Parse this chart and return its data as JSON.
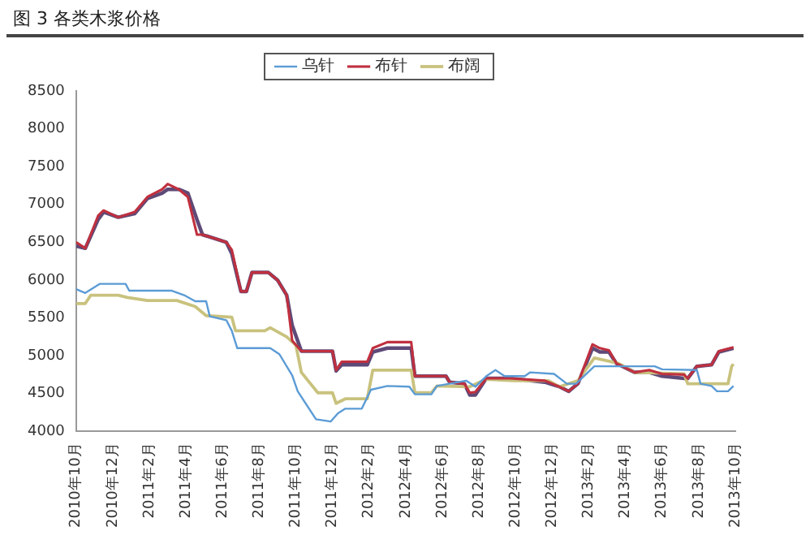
{
  "chart_data": {
    "type": "line",
    "title": "图 3 各类木浆价格",
    "xlim": [
      "2010-10",
      "2013-10"
    ],
    "xticks": [
      {
        "value": "2010-10",
        "label": "2010年10月"
      },
      {
        "value": "2010-12",
        "label": "2010年12月"
      },
      {
        "value": "2011-02",
        "label": "2011年2月"
      },
      {
        "value": "2011-04",
        "label": "2011年4月"
      },
      {
        "value": "2011-06",
        "label": "2011年6月"
      },
      {
        "value": "2011-08",
        "label": "2011年8月"
      },
      {
        "value": "2011-10",
        "label": "2011年10月"
      },
      {
        "value": "2011-12",
        "label": "2011年12月"
      },
      {
        "value": "2012-02",
        "label": "2012年2月"
      },
      {
        "value": "2012-04",
        "label": "2012年4月"
      },
      {
        "value": "2012-06",
        "label": "2012年6月"
      },
      {
        "value": "2012-08",
        "label": "2012年8月"
      },
      {
        "value": "2012-10",
        "label": "2012年10月"
      },
      {
        "value": "2012-12",
        "label": "2012年12月"
      },
      {
        "value": "2013-02",
        "label": "2013年2月"
      },
      {
        "value": "2013-04",
        "label": "2013年4月"
      },
      {
        "value": "2013-06",
        "label": "2013年6月"
      },
      {
        "value": "2013-08",
        "label": "2013年8月"
      },
      {
        "value": "2013-10",
        "label": "2013年10月"
      }
    ],
    "ylim": [
      4000,
      8500
    ],
    "yticks": [
      4000,
      4500,
      5000,
      5500,
      6000,
      6500,
      7000,
      7500,
      8000,
      8500
    ],
    "grid": false,
    "legend": "top",
    "marker": "none",
    "line_style": "solid",
    "series": [
      {
        "name": "乌针",
        "color": "#5b9bd5",
        "x": [
          "2010-10-01",
          "2010-10-16",
          "2010-11-10",
          "2010-12-22",
          "2010-12-28",
          "2011-03-07",
          "2011-03-28",
          "2011-04-16",
          "2011-05-04",
          "2011-05-10",
          "2011-06-07",
          "2011-06-16",
          "2011-06-25",
          "2011-08-19",
          "2011-09-04",
          "2011-09-25",
          "2011-10-04",
          "2011-11-04",
          "2011-11-28",
          "2011-12-10",
          "2011-12-22",
          "2012-01-19",
          "2012-02-04",
          "2012-03-01",
          "2012-04-07",
          "2012-04-16",
          "2012-05-13",
          "2012-05-22",
          "2012-07-10",
          "2012-07-25",
          "2012-08-13",
          "2012-08-28",
          "2012-09-13",
          "2012-10-16",
          "2012-10-25",
          "2012-12-04",
          "2012-12-25",
          "2013-01-10",
          "2013-01-19",
          "2013-02-10",
          "2013-05-19",
          "2013-06-01",
          "2013-07-28",
          "2013-08-04",
          "2013-08-22",
          "2013-09-01",
          "2013-09-19",
          "2013-09-28"
        ],
        "values": [
          5880,
          5830,
          5950,
          5950,
          5860,
          5860,
          5800,
          5720,
          5720,
          5520,
          5470,
          5330,
          5100,
          5100,
          5020,
          4740,
          4530,
          4160,
          4130,
          4240,
          4300,
          4300,
          4550,
          4600,
          4590,
          4490,
          4490,
          4600,
          4670,
          4590,
          4730,
          4810,
          4730,
          4730,
          4780,
          4760,
          4630,
          4630,
          4700,
          4860,
          4860,
          4820,
          4810,
          4630,
          4600,
          4530,
          4530,
          4600
        ]
      },
      {
        "name": "布针",
        "color": "#c0303f",
        "x": [
          "2010-10-01",
          "2010-10-16",
          "2010-11-07",
          "2010-11-16",
          "2010-12-10",
          "2011-01-07",
          "2011-01-28",
          "2011-02-22",
          "2011-03-01",
          "2011-03-19",
          "2011-04-04",
          "2011-04-19",
          "2011-04-28",
          "2011-06-07",
          "2011-06-16",
          "2011-07-01",
          "2011-07-10",
          "2011-07-19",
          "2011-08-16",
          "2011-09-01",
          "2011-09-16",
          "2011-09-25",
          "2011-10-10",
          "2011-12-01",
          "2011-12-07",
          "2011-12-16",
          "2012-01-28",
          "2012-02-07",
          "2012-03-01",
          "2012-04-10",
          "2012-04-16",
          "2012-06-07",
          "2012-06-13",
          "2012-07-07",
          "2012-07-16",
          "2012-07-25",
          "2012-08-13",
          "2012-09-22",
          "2012-11-19",
          "2012-12-13",
          "2012-12-28",
          "2013-01-13",
          "2013-02-07",
          "2013-02-19",
          "2013-03-04",
          "2013-03-16",
          "2013-04-16",
          "2013-05-10",
          "2013-06-01",
          "2013-07-07",
          "2013-07-13",
          "2013-07-28",
          "2013-08-22",
          "2013-09-04",
          "2013-09-28"
        ],
        "values": [
          6500,
          6420,
          6850,
          6920,
          6830,
          6900,
          7100,
          7200,
          7270,
          7200,
          7100,
          6600,
          6600,
          6500,
          6400,
          5850,
          5850,
          6100,
          6100,
          6000,
          5800,
          5200,
          5060,
          5060,
          4810,
          4920,
          4920,
          5100,
          5180,
          5180,
          4730,
          4730,
          4650,
          4630,
          4510,
          4520,
          4700,
          4700,
          4670,
          4590,
          4530,
          4630,
          5150,
          5100,
          5070,
          4900,
          4780,
          4810,
          4760,
          4750,
          4700,
          4860,
          4880,
          5060,
          5110
        ]
      },
      {
        "name": "布阔",
        "color": "#c9c27e",
        "x": [
          "2010-10-01",
          "2010-10-16",
          "2010-10-25",
          "2010-12-10",
          "2010-12-25",
          "2011-01-28",
          "2011-03-16",
          "2011-04-16",
          "2011-05-04",
          "2011-06-16",
          "2011-06-22",
          "2011-08-10",
          "2011-08-19",
          "2011-09-16",
          "2011-10-01",
          "2011-10-10",
          "2011-11-07",
          "2011-12-01",
          "2011-12-07",
          "2011-12-22",
          "2012-01-28",
          "2012-02-07",
          "2012-04-10",
          "2012-04-16",
          "2012-05-13",
          "2012-05-22",
          "2012-07-16",
          "2012-08-13",
          "2012-09-28",
          "2012-11-25",
          "2012-12-13",
          "2013-01-13",
          "2013-02-10",
          "2013-03-19",
          "2013-04-16",
          "2013-07-07",
          "2013-07-13",
          "2013-09-19",
          "2013-09-25",
          "2013-09-28"
        ],
        "values": [
          5690,
          5690,
          5800,
          5800,
          5770,
          5730,
          5730,
          5650,
          5530,
          5510,
          5330,
          5330,
          5370,
          5250,
          5140,
          4780,
          4510,
          4510,
          4370,
          4430,
          4430,
          4810,
          4810,
          4510,
          4510,
          4600,
          4590,
          4690,
          4670,
          4670,
          4590,
          4670,
          4970,
          4900,
          4780,
          4760,
          4630,
          4630,
          4860,
          4890
        ]
      },
      {
        "color": "#5e4a78",
        "x": [
          "2010-10-01",
          "2010-10-16",
          "2010-11-07",
          "2010-11-16",
          "2010-12-10",
          "2011-01-07",
          "2011-01-28",
          "2011-02-22",
          "2011-03-01",
          "2011-03-19",
          "2011-04-04",
          "2011-04-19",
          "2011-04-28",
          "2011-06-07",
          "2011-06-16",
          "2011-07-01",
          "2011-07-10",
          "2011-07-19",
          "2011-08-16",
          "2011-09-01",
          "2011-09-16",
          "2011-09-25",
          "2011-10-10",
          "2011-12-01",
          "2011-12-07",
          "2011-12-16",
          "2012-01-28",
          "2012-02-07",
          "2012-03-01",
          "2012-04-10",
          "2012-04-16",
          "2012-06-07",
          "2012-06-13",
          "2012-07-07",
          "2012-07-16",
          "2012-07-25",
          "2012-08-13",
          "2012-09-22",
          "2012-11-19",
          "2012-12-13",
          "2012-12-28",
          "2013-01-13",
          "2013-02-07",
          "2013-02-19",
          "2013-03-04",
          "2013-03-16",
          "2013-04-16",
          "2013-05-10",
          "2013-06-01",
          "2013-07-07",
          "2013-07-13",
          "2013-07-28",
          "2013-08-22",
          "2013-09-04",
          "2013-09-28"
        ],
        "values": [
          6450,
          6420,
          6800,
          6900,
          6830,
          6880,
          7080,
          7150,
          7200,
          7200,
          7150,
          6800,
          6600,
          6500,
          6350,
          5850,
          5850,
          6100,
          6100,
          6000,
          5800,
          5400,
          5060,
          5060,
          4800,
          4880,
          4880,
          5050,
          5100,
          5100,
          4730,
          4730,
          4650,
          4630,
          4480,
          4480,
          4700,
          4700,
          4650,
          4590,
          4530,
          4630,
          5100,
          5050,
          5050,
          4900,
          4780,
          4780,
          4730,
          4700,
          4700,
          4860,
          4880,
          5050,
          5100
        ]
      }
    ]
  }
}
